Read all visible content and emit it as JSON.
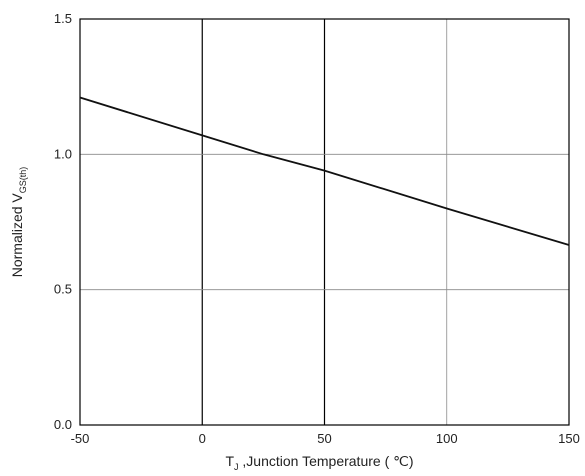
{
  "chart_data": {
    "type": "line",
    "title": "",
    "xlabel": {
      "main": "T",
      "subscript": "J",
      "rest": " ,Junction  Temperature  ( ℃)"
    },
    "ylabel": {
      "main": "Normalized V",
      "subscript": "GS(th)"
    },
    "xlim": [
      -50,
      150
    ],
    "ylim": [
      0.0,
      1.5
    ],
    "x_ticks": [
      "-50",
      "0",
      "50",
      "100",
      "150"
    ],
    "y_ticks": [
      "0.0",
      "0.5",
      "1.0",
      "1.5"
    ],
    "grid": true,
    "series": [
      {
        "x": [
          -50,
          0,
          25,
          50,
          100,
          150
        ],
        "y": [
          1.21,
          1.07,
          1.0,
          0.94,
          0.8,
          0.665
        ]
      }
    ]
  }
}
